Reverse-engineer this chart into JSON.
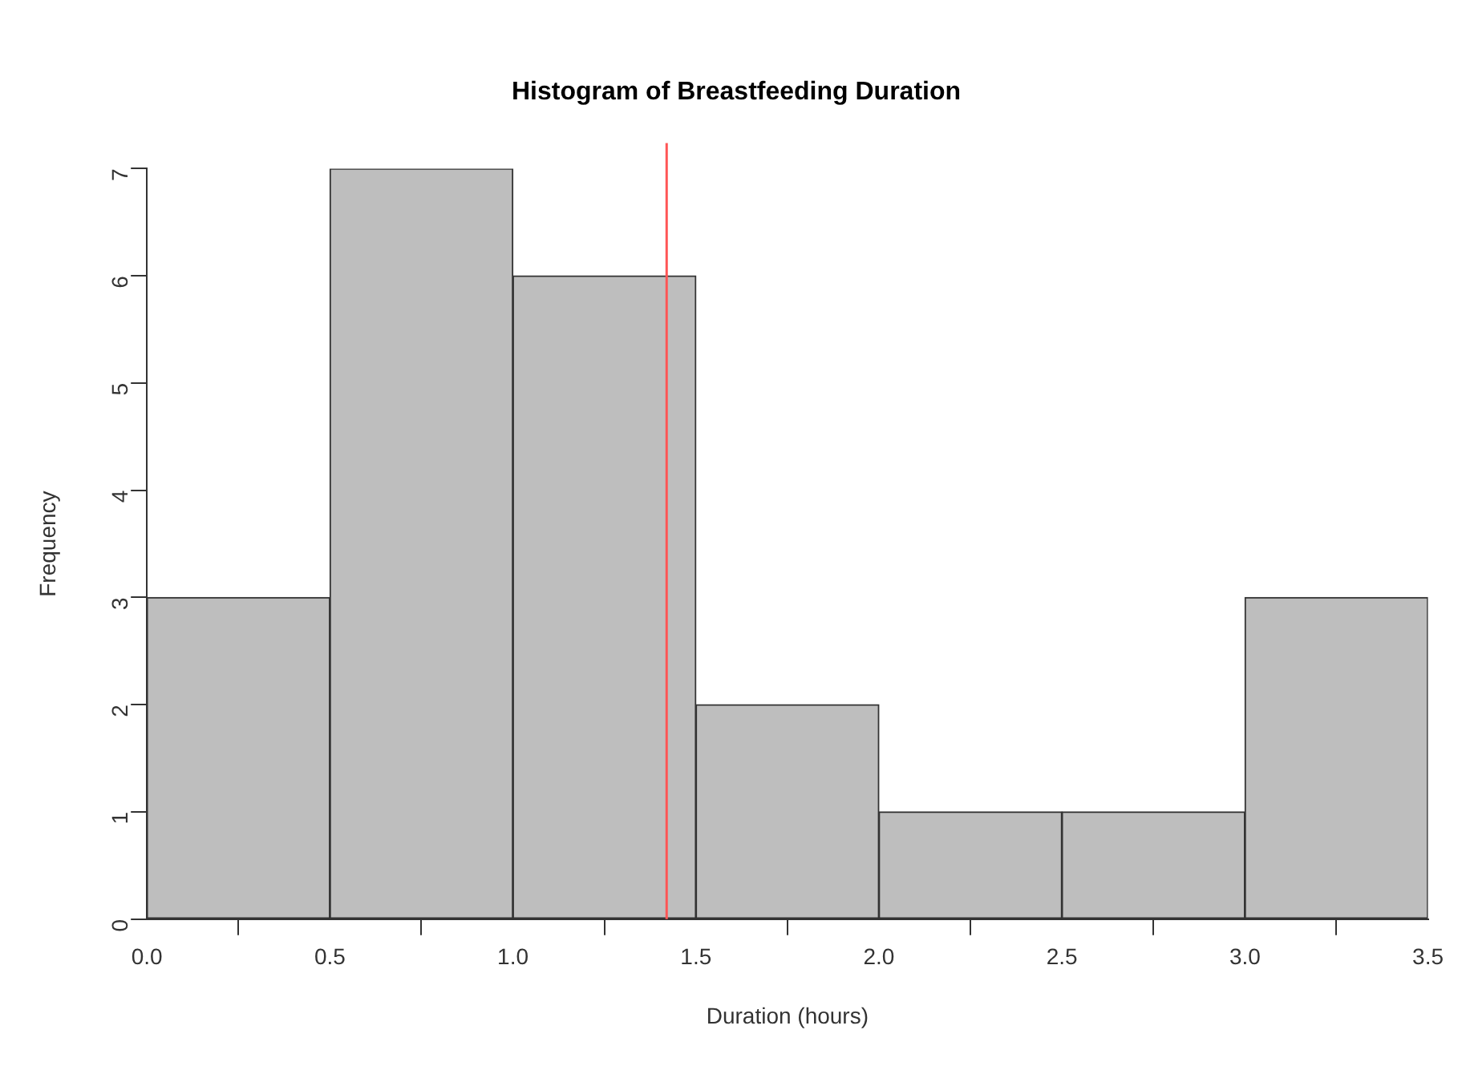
{
  "chart_data": {
    "type": "histogram",
    "title": "Histogram of Breastfeeding Duration",
    "xlabel": "Duration (hours)",
    "ylabel": "Frequency",
    "bins": [
      0,
      0.5,
      1,
      1.5,
      2,
      2.5,
      3,
      3.5
    ],
    "values": [
      3,
      7,
      6,
      2,
      1,
      1,
      3
    ],
    "color": "#bebebe",
    "xlim": [
      0,
      3.5
    ],
    "xticks": [
      {
        "value": 0,
        "label": "0.0"
      },
      {
        "value": 0.5,
        "label": "0.5"
      },
      {
        "value": 1,
        "label": "1.0"
      },
      {
        "value": 1.5,
        "label": "1.5"
      },
      {
        "value": 2,
        "label": "2.0"
      },
      {
        "value": 2.5,
        "label": "2.5"
      },
      {
        "value": 3,
        "label": "3.0"
      },
      {
        "value": 3.5,
        "label": "3.5"
      }
    ],
    "ylim": [
      0,
      7
    ],
    "yticks": [
      0,
      1,
      2,
      3,
      4,
      5,
      6,
      7
    ],
    "ref_lines": [
      {
        "axis": "x",
        "value": 1.42,
        "color": "#ff5555"
      }
    ],
    "grid": false,
    "legend": false
  }
}
